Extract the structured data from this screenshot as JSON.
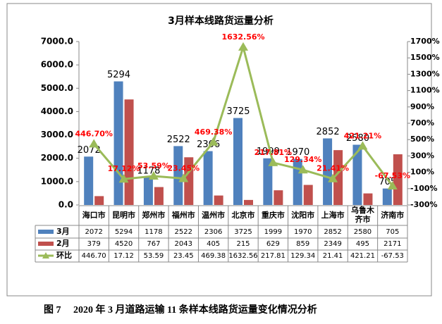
{
  "chart_data": {
    "type": "bar",
    "title": "3月样本线路货运量分析",
    "caption": "图 7　 2020 年 3 月道路运输 11 条样本线路货运量变化情况分析",
    "categories": [
      "海口市",
      "昆明市",
      "郑州市",
      "福州市",
      "温州市",
      "北京市",
      "重庆市",
      "沈阳市",
      "上海市",
      "乌鲁木齐市",
      "济南市"
    ],
    "series": [
      {
        "name": "3月",
        "color": "#4f81bd",
        "values": [
          2072,
          5294,
          1178,
          2522,
          2306,
          3725,
          1999,
          1970,
          2852,
          2580,
          705
        ]
      },
      {
        "name": "2月",
        "color": "#c0504d",
        "values": [
          379,
          4520,
          767,
          2043,
          405,
          215,
          629,
          859,
          2349,
          495,
          2171
        ]
      },
      {
        "name": "环比",
        "color": "#9bbb59",
        "axis": "y2",
        "type": "line",
        "values": [
          446.7,
          17.12,
          53.59,
          23.45,
          469.38,
          1632.56,
          217.81,
          129.34,
          21.41,
          421.21,
          -67.53
        ],
        "value_labels": [
          "446.70%",
          "17.12%",
          "53.59%",
          "23.45%",
          "469.38%",
          "1632.56%",
          "217.81%",
          "129.34%",
          "21.41%",
          "421.21%",
          "-67.53%"
        ],
        "table_labels": [
          "446.70",
          "17.12",
          "53.59",
          "23.45",
          "469.38",
          "1632.56",
          "217.81",
          "129.34",
          "21.41",
          "421.21",
          "-67.53"
        ]
      }
    ],
    "ylim": [
      0,
      7000
    ],
    "yticks": [
      {
        "value": 0,
        "label": "0.0"
      },
      {
        "value": 1000,
        "label": "1000.0"
      },
      {
        "value": 2000,
        "label": "2000.0"
      },
      {
        "value": 3000,
        "label": "3000.0"
      },
      {
        "value": 4000,
        "label": "4000.0"
      },
      {
        "value": 5000,
        "label": "5000.0"
      },
      {
        "value": 6000,
        "label": "6000.0"
      },
      {
        "value": 7000,
        "label": "7000.0"
      }
    ],
    "y2lim": [
      -300,
      1700
    ],
    "y2ticks": [
      {
        "value": -300,
        "label": "-300%"
      },
      {
        "value": -100,
        "label": "-100%"
      },
      {
        "value": 100,
        "label": "100%"
      },
      {
        "value": 300,
        "label": "300%"
      },
      {
        "value": 500,
        "label": "500%"
      },
      {
        "value": 700,
        "label": "700%"
      },
      {
        "value": 900,
        "label": "900%"
      },
      {
        "value": 1100,
        "label": "1100%"
      },
      {
        "value": 1300,
        "label": "1300%"
      },
      {
        "value": 1500,
        "label": "1500%"
      },
      {
        "value": 1700,
        "label": "1700%"
      }
    ],
    "value_label_color": "#ff0000"
  }
}
